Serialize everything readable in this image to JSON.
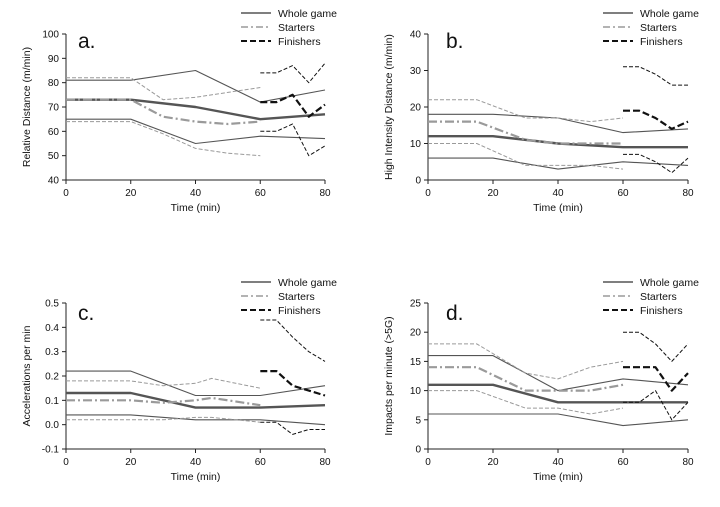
{
  "legend_labels": [
    "Whole game",
    "Starters",
    "Finishers"
  ],
  "chart_data": [
    {
      "type": "line",
      "panel_letter": "a.",
      "xlabel": "Time (min)",
      "ylabel": "Relative Distance (m/min)",
      "xlim": [
        0,
        80
      ],
      "ylim": [
        40,
        100
      ],
      "xticks": [
        0,
        20,
        40,
        60,
        80
      ],
      "yticks": [
        40,
        50,
        60,
        70,
        80,
        90,
        100
      ],
      "legend_position": "top-right",
      "series": [
        {
          "group": "Whole game",
          "stat": "mean",
          "x": [
            0,
            20,
            40,
            60,
            80
          ],
          "y": [
            73,
            73,
            70,
            65,
            67
          ]
        },
        {
          "group": "Whole game",
          "stat": "upper",
          "x": [
            0,
            20,
            40,
            60,
            80
          ],
          "y": [
            81,
            81,
            85,
            72,
            77
          ]
        },
        {
          "group": "Whole game",
          "stat": "lower",
          "x": [
            0,
            20,
            40,
            60,
            80
          ],
          "y": [
            65,
            65,
            55,
            58,
            57
          ]
        },
        {
          "group": "Starters",
          "stat": "mean",
          "x": [
            0,
            20,
            30,
            40,
            50,
            60
          ],
          "y": [
            73,
            73,
            66,
            64,
            63,
            64
          ]
        },
        {
          "group": "Starters",
          "stat": "upper",
          "x": [
            0,
            20,
            30,
            40,
            50,
            60
          ],
          "y": [
            82,
            82,
            73,
            74,
            76,
            78
          ]
        },
        {
          "group": "Starters",
          "stat": "lower",
          "x": [
            0,
            20,
            30,
            40,
            50,
            60
          ],
          "y": [
            64,
            64,
            59,
            53,
            51,
            50
          ]
        },
        {
          "group": "Finishers",
          "stat": "mean",
          "x": [
            60,
            65,
            70,
            75,
            80
          ],
          "y": [
            72,
            72,
            75,
            66,
            71
          ]
        },
        {
          "group": "Finishers",
          "stat": "upper",
          "x": [
            60,
            65,
            70,
            75,
            80
          ],
          "y": [
            84,
            84,
            87,
            80,
            88
          ]
        },
        {
          "group": "Finishers",
          "stat": "lower",
          "x": [
            60,
            65,
            70,
            75,
            80
          ],
          "y": [
            60,
            60,
            63,
            50,
            54
          ]
        }
      ]
    },
    {
      "type": "line",
      "panel_letter": "b.",
      "xlabel": "Time (min)",
      "ylabel": "High Intensity Distance (m/min)",
      "xlim": [
        0,
        80
      ],
      "ylim": [
        0,
        40
      ],
      "xticks": [
        0,
        20,
        40,
        60,
        80
      ],
      "yticks": [
        0,
        10,
        20,
        30,
        40
      ],
      "legend_position": "top-right",
      "series": [
        {
          "group": "Whole game",
          "stat": "mean",
          "x": [
            0,
            20,
            40,
            60,
            80
          ],
          "y": [
            12,
            12,
            10,
            9,
            9
          ]
        },
        {
          "group": "Whole game",
          "stat": "upper",
          "x": [
            0,
            20,
            40,
            60,
            80
          ],
          "y": [
            18,
            18,
            17,
            13,
            14
          ]
        },
        {
          "group": "Whole game",
          "stat": "lower",
          "x": [
            0,
            20,
            40,
            60,
            80
          ],
          "y": [
            6,
            6,
            3,
            5,
            4
          ]
        },
        {
          "group": "Starters",
          "stat": "mean",
          "x": [
            0,
            15,
            30,
            40,
            50,
            60
          ],
          "y": [
            16,
            16,
            11,
            10,
            10,
            10
          ]
        },
        {
          "group": "Starters",
          "stat": "upper",
          "x": [
            0,
            15,
            30,
            40,
            50,
            60
          ],
          "y": [
            22,
            22,
            17,
            17,
            16,
            17
          ]
        },
        {
          "group": "Starters",
          "stat": "lower",
          "x": [
            0,
            15,
            30,
            40,
            50,
            60
          ],
          "y": [
            10,
            10,
            4,
            4,
            4,
            3
          ]
        },
        {
          "group": "Finishers",
          "stat": "mean",
          "x": [
            60,
            65,
            70,
            75,
            80
          ],
          "y": [
            19,
            19,
            17,
            14,
            16
          ]
        },
        {
          "group": "Finishers",
          "stat": "upper",
          "x": [
            60,
            65,
            70,
            75,
            80
          ],
          "y": [
            31,
            31,
            29,
            26,
            26
          ]
        },
        {
          "group": "Finishers",
          "stat": "lower",
          "x": [
            60,
            65,
            70,
            75,
            80
          ],
          "y": [
            7,
            7,
            5,
            2,
            6
          ]
        }
      ]
    },
    {
      "type": "line",
      "panel_letter": "c.",
      "xlabel": "Time (min)",
      "ylabel": "Accelerations per min",
      "xlim": [
        0,
        80
      ],
      "ylim": [
        -0.1,
        0.5
      ],
      "xticks": [
        0,
        20,
        40,
        60,
        80
      ],
      "yticks": [
        -0.1,
        0.0,
        0.1,
        0.2,
        0.3,
        0.4,
        0.5
      ],
      "ytick_labels": [
        "-0.1",
        "0.0",
        "0.1",
        "0.2",
        "0.3",
        "0.4",
        "0.5"
      ],
      "legend_position": "top-right",
      "series": [
        {
          "group": "Whole game",
          "stat": "mean",
          "x": [
            0,
            20,
            40,
            60,
            80
          ],
          "y": [
            0.13,
            0.13,
            0.07,
            0.07,
            0.08
          ]
        },
        {
          "group": "Whole game",
          "stat": "upper",
          "x": [
            0,
            20,
            40,
            60,
            80
          ],
          "y": [
            0.22,
            0.22,
            0.12,
            0.12,
            0.16
          ]
        },
        {
          "group": "Whole game",
          "stat": "lower",
          "x": [
            0,
            20,
            40,
            60,
            80
          ],
          "y": [
            0.04,
            0.04,
            0.02,
            0.02,
            0.0
          ]
        },
        {
          "group": "Starters",
          "stat": "mean",
          "x": [
            0,
            20,
            30,
            40,
            45,
            60
          ],
          "y": [
            0.1,
            0.1,
            0.09,
            0.1,
            0.11,
            0.08
          ]
        },
        {
          "group": "Starters",
          "stat": "upper",
          "x": [
            0,
            20,
            30,
            40,
            45,
            60
          ],
          "y": [
            0.18,
            0.18,
            0.16,
            0.17,
            0.19,
            0.15
          ]
        },
        {
          "group": "Starters",
          "stat": "lower",
          "x": [
            0,
            20,
            30,
            40,
            45,
            60
          ],
          "y": [
            0.02,
            0.02,
            0.02,
            0.03,
            0.03,
            0.01
          ]
        },
        {
          "group": "Finishers",
          "stat": "mean",
          "x": [
            60,
            65,
            70,
            75,
            80
          ],
          "y": [
            0.22,
            0.22,
            0.16,
            0.14,
            0.12
          ]
        },
        {
          "group": "Finishers",
          "stat": "upper",
          "x": [
            60,
            65,
            70,
            75,
            80
          ],
          "y": [
            0.43,
            0.43,
            0.36,
            0.3,
            0.26
          ]
        },
        {
          "group": "Finishers",
          "stat": "lower",
          "x": [
            60,
            65,
            70,
            75,
            80
          ],
          "y": [
            0.01,
            0.01,
            -0.04,
            -0.02,
            -0.02
          ]
        }
      ]
    },
    {
      "type": "line",
      "panel_letter": "d.",
      "xlabel": "Time (min)",
      "ylabel": "Impacts per minute (>5G)",
      "xlim": [
        0,
        80
      ],
      "ylim": [
        0,
        25
      ],
      "xticks": [
        0,
        20,
        40,
        60,
        80
      ],
      "yticks": [
        0,
        5,
        10,
        15,
        20,
        25
      ],
      "legend_position": "top-right",
      "series": [
        {
          "group": "Whole game",
          "stat": "mean",
          "x": [
            0,
            20,
            40,
            60,
            80
          ],
          "y": [
            11,
            11,
            8,
            8,
            8
          ]
        },
        {
          "group": "Whole game",
          "stat": "upper",
          "x": [
            0,
            20,
            40,
            60,
            80
          ],
          "y": [
            16,
            16,
            10,
            12,
            11
          ]
        },
        {
          "group": "Whole game",
          "stat": "lower",
          "x": [
            0,
            20,
            40,
            60,
            80
          ],
          "y": [
            6,
            6,
            6,
            4,
            5
          ]
        },
        {
          "group": "Starters",
          "stat": "mean",
          "x": [
            0,
            15,
            30,
            40,
            50,
            60
          ],
          "y": [
            14,
            14,
            10,
            10,
            10,
            11
          ]
        },
        {
          "group": "Starters",
          "stat": "upper",
          "x": [
            0,
            15,
            30,
            40,
            50,
            60
          ],
          "y": [
            18,
            18,
            13,
            12,
            14,
            15
          ]
        },
        {
          "group": "Starters",
          "stat": "lower",
          "x": [
            0,
            15,
            30,
            40,
            50,
            60
          ],
          "y": [
            10,
            10,
            7,
            7,
            6,
            7
          ]
        },
        {
          "group": "Finishers",
          "stat": "mean",
          "x": [
            60,
            65,
            70,
            75,
            80
          ],
          "y": [
            14,
            14,
            14,
            10,
            13
          ]
        },
        {
          "group": "Finishers",
          "stat": "upper",
          "x": [
            60,
            65,
            70,
            75,
            80
          ],
          "y": [
            20,
            20,
            18,
            15,
            18
          ]
        },
        {
          "group": "Finishers",
          "stat": "lower",
          "x": [
            60,
            65,
            70,
            75,
            80
          ],
          "y": [
            8,
            8,
            10,
            5,
            8
          ]
        }
      ]
    }
  ]
}
